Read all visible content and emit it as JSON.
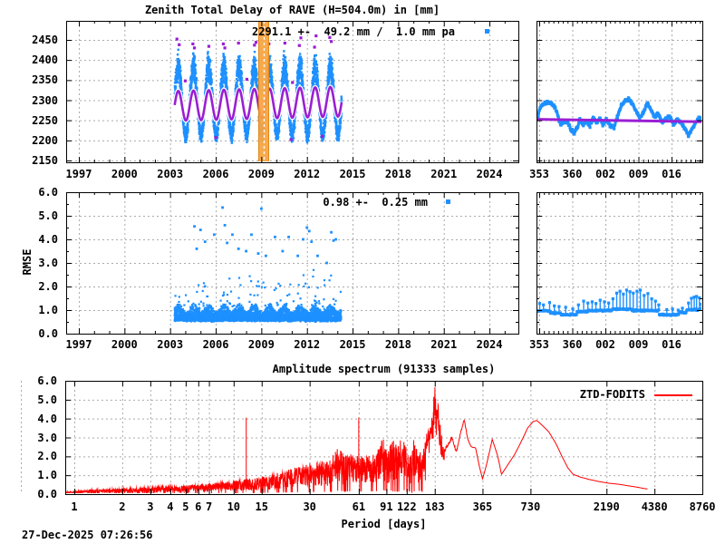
{
  "app": {
    "timestamp": "27-Dec-2025 07:26:56"
  },
  "colors": {
    "data_blue": "#1e90ff",
    "model_purple": "#9a1fd3",
    "spectrum_red": "#ff0000",
    "event_orange": "#f7a440",
    "event_edge": "#e08818",
    "grid_gray": "#ababab",
    "frame_black": "#000000"
  },
  "ztd_panel": {
    "title": "Zenith Total Delay of RAVE (H=504.0m) in [mm]",
    "annotation": "2291.1 +-  49.2 mm /  1.0 mm pa"
  },
  "rmse_panel": {
    "ylabel": "RMSE",
    "annotation": "0.98 +-  0.25 mm"
  },
  "spectrum_panel": {
    "title": "Amplitude spectrum (91333 samples)",
    "xlabel": "Period [days]",
    "legend": "ZTD-FODITS"
  },
  "chart_data": [
    {
      "id": "ztd_main",
      "type": "scatter",
      "title": "Zenith Total Delay of RAVE (H=504.0m) in [mm]",
      "x_tick_values": [
        1997,
        2000,
        2003,
        2006,
        2009,
        2012,
        2015,
        2018,
        2021,
        2024
      ],
      "x_tick_labels": [
        "1997",
        "2000",
        "2003",
        "2006",
        "2009",
        "2012",
        "2015",
        "2018",
        "2021",
        "2024"
      ],
      "y_tick_values": [
        2150,
        2200,
        2250,
        2300,
        2350,
        2400,
        2450
      ],
      "y_tick_labels": [
        "2150",
        "2200",
        "2250",
        "2300",
        "2350",
        "2400",
        "2450"
      ],
      "x_range_years": [
        1996.17,
        2025.9
      ],
      "y_range_mm": [
        2145,
        2497
      ],
      "data_span_years": [
        2003.3,
        2014.28
      ],
      "seasonal_cloud": {
        "mean": 2298,
        "amplitude": 85,
        "noise_sigma": 25,
        "peak_year_fraction": 0.54,
        "clamp": [
          2183,
          2446
        ]
      },
      "model": {
        "mean": 2291.1,
        "amplitude": 37,
        "trend_mm_per_year": 1.0,
        "ref_year": 2008.8
      },
      "event_band_years": [
        2008.84,
        2009.5
      ],
      "event_line_year": 2009.17,
      "outliers": [
        [
          2003.45,
          2452
        ],
        [
          2003.6,
          2438
        ],
        [
          2004.5,
          2440
        ],
        [
          2004.6,
          2430
        ],
        [
          2005.55,
          2434
        ],
        [
          2006.5,
          2440
        ],
        [
          2006.6,
          2430
        ],
        [
          2007.5,
          2442
        ],
        [
          2008.55,
          2437
        ],
        [
          2008.65,
          2444
        ],
        [
          2009.5,
          2440
        ],
        [
          2010.55,
          2442
        ],
        [
          2011.5,
          2436
        ],
        [
          2011.6,
          2455
        ],
        [
          2012.5,
          2432
        ],
        [
          2012.6,
          2460
        ],
        [
          2013.5,
          2456
        ],
        [
          2013.6,
          2446
        ],
        [
          2004.0,
          2348
        ],
        [
          2008.05,
          2352
        ],
        [
          2009.15,
          2342
        ],
        [
          2011.05,
          2344
        ],
        [
          2006.0,
          2207
        ],
        [
          2010.95,
          2202
        ],
        [
          2013.0,
          2210
        ]
      ]
    },
    {
      "id": "ztd_zoom",
      "type": "line",
      "x_tick_values": [
        353,
        360,
        367,
        374,
        381
      ],
      "x_tick_labels": [
        "353",
        "360",
        "002",
        "009",
        "016"
      ],
      "x_range_days": [
        352.42,
        387.52
      ],
      "y_range_mm": [
        2145,
        2497
      ],
      "line_points": [
        [
          352.4,
          2253
        ],
        [
          353.2,
          2282
        ],
        [
          354,
          2293
        ],
        [
          354.8,
          2296
        ],
        [
          355.6,
          2290
        ],
        [
          356.4,
          2283
        ],
        [
          357,
          2258
        ],
        [
          357.6,
          2238
        ],
        [
          358.3,
          2248
        ],
        [
          359,
          2242
        ],
        [
          359.6,
          2231
        ],
        [
          360.3,
          2218
        ],
        [
          361,
          2230
        ],
        [
          361.6,
          2252
        ],
        [
          362.2,
          2238
        ],
        [
          363,
          2249
        ],
        [
          363.7,
          2234
        ],
        [
          364.4,
          2257
        ],
        [
          365.1,
          2243
        ],
        [
          365.8,
          2256
        ],
        [
          366.5,
          2239
        ],
        [
          367.2,
          2252
        ],
        [
          368,
          2235
        ],
        [
          368.8,
          2231
        ],
        [
          369.6,
          2262
        ],
        [
          370.4,
          2288
        ],
        [
          371.2,
          2297
        ],
        [
          372,
          2302
        ],
        [
          372.8,
          2290
        ],
        [
          373.6,
          2270
        ],
        [
          374.3,
          2255
        ],
        [
          375,
          2268
        ],
        [
          375.8,
          2293
        ],
        [
          376.6,
          2277
        ],
        [
          377.4,
          2258
        ],
        [
          378.2,
          2267
        ],
        [
          379,
          2247
        ],
        [
          379.8,
          2252
        ],
        [
          380.6,
          2260
        ],
        [
          381.4,
          2240
        ],
        [
          382.2,
          2252
        ],
        [
          383,
          2244
        ],
        [
          383.8,
          2230
        ],
        [
          384.6,
          2212
        ],
        [
          385.3,
          2228
        ],
        [
          386,
          2242
        ],
        [
          386.7,
          2252
        ],
        [
          387.5,
          2254
        ]
      ],
      "model_line": [
        [
          352.42,
          2252.5
        ],
        [
          387.52,
          2246.5
        ]
      ]
    },
    {
      "id": "rmse_main",
      "type": "scatter",
      "ylabel": "RMSE",
      "x_tick_values": [
        1997,
        2000,
        2003,
        2006,
        2009,
        2012,
        2015,
        2018,
        2021,
        2024
      ],
      "x_tick_labels": [
        "1997",
        "2000",
        "2003",
        "2006",
        "2009",
        "2012",
        "2015",
        "2018",
        "2021",
        "2024"
      ],
      "y_tick_values": [
        0,
        1,
        2,
        3,
        4,
        5,
        6
      ],
      "y_tick_labels": [
        "0.0",
        "1.0",
        "2.0",
        "3.0",
        "4.0",
        "5.0",
        "6.0"
      ],
      "x_range_years": [
        1996.17,
        2025.9
      ],
      "y_range": [
        0,
        6
      ],
      "data_span_years": [
        2003.3,
        2014.25
      ],
      "cloud": {
        "base": 0.58,
        "spread": 0.5,
        "seasonal_factor": 0.35
      },
      "outliers": [
        [
          2004.6,
          4.55
        ],
        [
          2004.75,
          3.6
        ],
        [
          2005.0,
          4.4
        ],
        [
          2005.3,
          3.9
        ],
        [
          2005.9,
          4.2
        ],
        [
          2006.45,
          5.35
        ],
        [
          2006.6,
          4.6
        ],
        [
          2006.75,
          3.85
        ],
        [
          2007.1,
          4.2
        ],
        [
          2007.5,
          3.6
        ],
        [
          2008.0,
          3.5
        ],
        [
          2008.35,
          4.2
        ],
        [
          2008.8,
          3.4
        ],
        [
          2009.0,
          5.3
        ],
        [
          2009.3,
          3.3
        ],
        [
          2009.9,
          4.1
        ],
        [
          2010.4,
          3.5
        ],
        [
          2010.8,
          4.1
        ],
        [
          2011.4,
          3.3
        ],
        [
          2011.75,
          4.0
        ],
        [
          2012.0,
          4.5
        ],
        [
          2012.15,
          4.35
        ],
        [
          2012.3,
          3.9
        ],
        [
          2012.7,
          3.3
        ],
        [
          2013.3,
          3.0
        ],
        [
          2013.6,
          4.3
        ],
        [
          2013.75,
          3.95
        ],
        [
          2013.9,
          4.0
        ]
      ]
    },
    {
      "id": "rmse_zoom",
      "type": "impulses",
      "x_tick_values": [
        353,
        360,
        367,
        374,
        381
      ],
      "x_tick_labels": [
        "353",
        "360",
        "002",
        "009",
        "016"
      ],
      "x_range_days": [
        352.42,
        387.52
      ],
      "y_range": [
        0,
        6
      ],
      "baseline_segments": [
        [
          352.4,
          355.4,
          0.97
        ],
        [
          355.4,
          357.6,
          0.88
        ],
        [
          357.6,
          361.0,
          0.8
        ],
        [
          361.0,
          363.4,
          0.93
        ],
        [
          363.4,
          368.4,
          0.98
        ],
        [
          368.4,
          372.6,
          1.04
        ],
        [
          372.6,
          378.4,
          0.98
        ],
        [
          378.4,
          382.6,
          0.8
        ],
        [
          382.6,
          384.2,
          0.9
        ],
        [
          384.2,
          387.5,
          1.02
        ]
      ],
      "spikes": [
        [
          353.1,
          1.28
        ],
        [
          353.9,
          1.22
        ],
        [
          355.2,
          1.32
        ],
        [
          356.2,
          1.18
        ],
        [
          357.2,
          1.15
        ],
        [
          358.6,
          1.12
        ],
        [
          360.1,
          1.05
        ],
        [
          361.3,
          1.22
        ],
        [
          362.4,
          1.38
        ],
        [
          363.3,
          1.3
        ],
        [
          364.2,
          1.35
        ],
        [
          365.0,
          1.28
        ],
        [
          365.9,
          1.42
        ],
        [
          366.8,
          1.35
        ],
        [
          367.7,
          1.3
        ],
        [
          368.6,
          1.48
        ],
        [
          369.4,
          1.72
        ],
        [
          370.1,
          1.8
        ],
        [
          370.8,
          1.68
        ],
        [
          371.5,
          1.85
        ],
        [
          372.2,
          1.78
        ],
        [
          372.9,
          1.72
        ],
        [
          373.7,
          1.8
        ],
        [
          374.4,
          1.85
        ],
        [
          375.2,
          1.62
        ],
        [
          376.0,
          1.7
        ],
        [
          376.8,
          1.48
        ],
        [
          377.6,
          1.38
        ],
        [
          378.3,
          1.22
        ],
        [
          380.0,
          1.02
        ],
        [
          381.2,
          1.05
        ],
        [
          382.4,
          1.0
        ],
        [
          383.3,
          1.08
        ],
        [
          384.6,
          1.3
        ],
        [
          385.2,
          1.5
        ],
        [
          385.8,
          1.55
        ],
        [
          386.3,
          1.58
        ],
        [
          386.9,
          1.52
        ],
        [
          387.3,
          1.25
        ]
      ]
    },
    {
      "id": "spectrum",
      "type": "line",
      "title": "Amplitude spectrum (91333 samples)",
      "xlabel": "Period [days]",
      "legend": "ZTD-FODITS",
      "x_scale": "log",
      "x_tick_values": [
        1,
        2,
        3,
        4,
        5,
        6,
        7,
        10,
        15,
        30,
        61,
        91,
        122,
        183,
        365,
        730,
        2190,
        4380,
        8760
      ],
      "x_tick_labels": [
        "1",
        "2",
        "3",
        "4",
        "5",
        "6",
        "7",
        "10",
        "15",
        "30",
        "61",
        "91",
        "122",
        "183",
        "365",
        "730",
        "2190",
        "4380",
        "8760"
      ],
      "y_tick_values": [
        0,
        1,
        2,
        3,
        4,
        5,
        6
      ],
      "y_tick_labels": [
        "0.0",
        "1.0",
        "2.0",
        "3.0",
        "4.0",
        "5.0",
        "6.0"
      ],
      "x_range_days": [
        0.877,
        8760
      ],
      "y_range": [
        0,
        6
      ],
      "envelope_points": [
        [
          0.877,
          0.12
        ],
        [
          1,
          0.15
        ],
        [
          1.3,
          0.22
        ],
        [
          1.7,
          0.26
        ],
        [
          2,
          0.28
        ],
        [
          2.5,
          0.32
        ],
        [
          3,
          0.35
        ],
        [
          4,
          0.42
        ],
        [
          5,
          0.48
        ],
        [
          6,
          0.5
        ],
        [
          7,
          0.55
        ],
        [
          8.5,
          0.62
        ],
        [
          10,
          0.7
        ],
        [
          11,
          0.75
        ],
        [
          13,
          0.8
        ],
        [
          15,
          0.92
        ],
        [
          18,
          1.1
        ],
        [
          21,
          1.25
        ],
        [
          25,
          1.45
        ],
        [
          30,
          1.6
        ],
        [
          35,
          1.72
        ],
        [
          40,
          1.8
        ],
        [
          45,
          2.6
        ],
        [
          50,
          2.05
        ],
        [
          55,
          2.2
        ],
        [
          66,
          1.95
        ],
        [
          72,
          2.1
        ],
        [
          80,
          2.3
        ],
        [
          86,
          3.1
        ],
        [
          91,
          2.5
        ],
        [
          96,
          2.7
        ],
        [
          101,
          2.9
        ],
        [
          107,
          2.6
        ],
        [
          113,
          3.0
        ],
        [
          118,
          2.9
        ],
        [
          122,
          2.7
        ],
        [
          128,
          2.5
        ],
        [
          134,
          2.95
        ],
        [
          141,
          2.6
        ],
        [
          148,
          2.3
        ],
        [
          155,
          2.5
        ],
        [
          163,
          3.3
        ],
        [
          170,
          3.6
        ],
        [
          176,
          4.2
        ],
        [
          183,
          5.9
        ],
        [
          188,
          4.4
        ],
        [
          193,
          5.0
        ],
        [
          200,
          3.4
        ],
        [
          210,
          2.3
        ],
        [
          222,
          2.6
        ],
        [
          235,
          3.0
        ],
        [
          250,
          2.2
        ],
        [
          265,
          3.2
        ],
        [
          280,
          3.95
        ],
        [
          295,
          2.9
        ],
        [
          310,
          2.5
        ],
        [
          330,
          2.45
        ],
        [
          348,
          1.5
        ],
        [
          365,
          0.8
        ],
        [
          385,
          1.5
        ],
        [
          420,
          2.9
        ],
        [
          455,
          2.0
        ],
        [
          480,
          1.05
        ],
        [
          530,
          1.6
        ],
        [
          580,
          2.1
        ],
        [
          640,
          2.8
        ],
        [
          700,
          3.5
        ],
        [
          760,
          3.85
        ],
        [
          800,
          3.9
        ],
        [
          850,
          3.7
        ],
        [
          950,
          3.3
        ],
        [
          1050,
          2.7
        ],
        [
          1150,
          2.0
        ],
        [
          1250,
          1.4
        ],
        [
          1350,
          1.05
        ],
        [
          1500,
          0.9
        ],
        [
          1700,
          0.78
        ],
        [
          1950,
          0.67
        ],
        [
          2250,
          0.58
        ],
        [
          2630,
          0.52
        ],
        [
          3000,
          0.44
        ],
        [
          3400,
          0.37
        ],
        [
          3700,
          0.31
        ],
        [
          3960,
          0.27
        ]
      ],
      "spikes": [
        [
          12,
          4.05
        ],
        [
          61,
          4.05
        ]
      ],
      "noise": {
        "floor_factor": 0.22,
        "jitter_end_period": 210
      }
    }
  ]
}
